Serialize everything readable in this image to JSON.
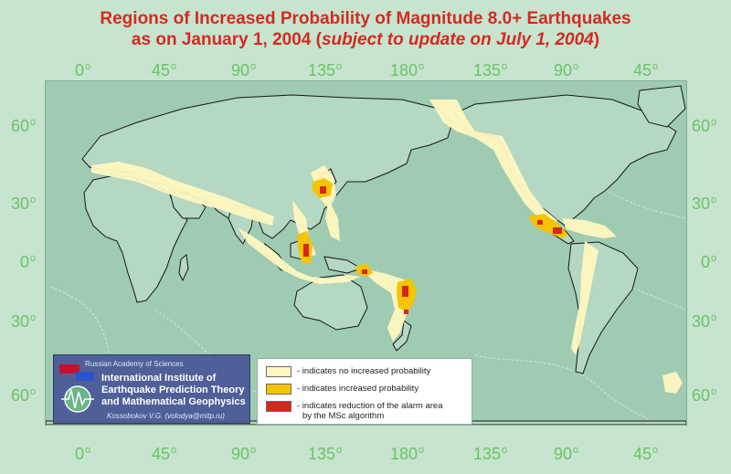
{
  "title": {
    "line1": "Regions of Increased Probability of Magnitude 8.0+ Earthquakes",
    "line2_prefix": "as on January 1, 2004 (",
    "line2_italic": "subject to update on July 1, 2004",
    "line2_suffix": ")"
  },
  "axes": {
    "longitude_labels": [
      "0",
      "45",
      "90",
      "135",
      "180",
      "135",
      "90",
      "45"
    ],
    "latitude_labels": [
      "60",
      "30",
      "0",
      "30",
      "60"
    ],
    "degree_mark": "o"
  },
  "colors": {
    "background": "#c7e4cf",
    "ocean": "#9fcbb2",
    "axis_labels": "#6cc068",
    "title": "#d42a20",
    "no_increase": "#fff7bf",
    "increased": "#f5c400",
    "reduction": "#d7261c"
  },
  "legend": {
    "items": [
      {
        "label": "- indicates no increased probability",
        "color": "#fff7bf"
      },
      {
        "label": "- indicates increased probability",
        "color": "#f5c400"
      },
      {
        "label": "- indicates reduction of the alarm area",
        "label2": "by the MSc algorithm",
        "color": "#d7261c"
      }
    ]
  },
  "logo": {
    "academy": "Russian Academy of Sciences",
    "institute_line1": "International Institute of",
    "institute_line2": "Earthquake Prediction Theory",
    "institute_line3": "and Mathematical Geophysics",
    "author": "Kossobokov V.G. (volodya@mitp.ru)",
    "logo_icon": "globe-seismogram-icon"
  }
}
